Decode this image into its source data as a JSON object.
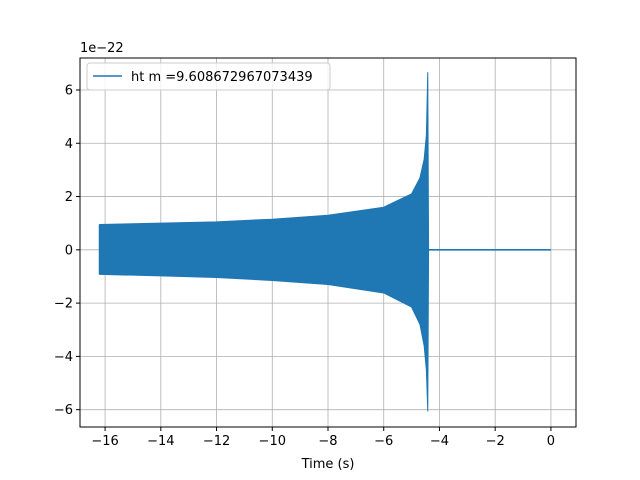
{
  "chart_data": {
    "type": "line",
    "title": "",
    "xlabel": "Time (s)",
    "ylabel": "",
    "offset_label": "1e−22",
    "xlim": [
      -16.9,
      0.9
    ],
    "ylim": [
      -6.65,
      7.2
    ],
    "grid": true,
    "legend_position": "top-left",
    "x_ticks": [
      {
        "value": -16,
        "label": "−16"
      },
      {
        "value": -14,
        "label": "−14"
      },
      {
        "value": -12,
        "label": "−12"
      },
      {
        "value": -10,
        "label": "−10"
      },
      {
        "value": -8,
        "label": "−8"
      },
      {
        "value": -6,
        "label": "−6"
      },
      {
        "value": -4,
        "label": "−4"
      },
      {
        "value": -2,
        "label": "−2"
      },
      {
        "value": 0,
        "label": "0"
      }
    ],
    "y_ticks": [
      {
        "value": -6,
        "label": "−6"
      },
      {
        "value": -4,
        "label": "−4"
      },
      {
        "value": -2,
        "label": "−2"
      },
      {
        "value": 0,
        "label": "0"
      },
      {
        "value": 2,
        "label": "2"
      },
      {
        "value": 4,
        "label": "4"
      },
      {
        "value": 6,
        "label": "6"
      }
    ],
    "series": [
      {
        "name": "ht m =9.608672967073439",
        "color": "#1f77b4",
        "upper_envelope": [
          [
            -16.2,
            0.95
          ],
          [
            -14,
            1.0
          ],
          [
            -12,
            1.05
          ],
          [
            -10,
            1.15
          ],
          [
            -8,
            1.3
          ],
          [
            -6,
            1.6
          ],
          [
            -5,
            2.1
          ],
          [
            -4.7,
            2.7
          ],
          [
            -4.55,
            3.4
          ],
          [
            -4.47,
            4.3
          ],
          [
            -4.42,
            6.65
          ],
          [
            -4.39,
            0.0
          ]
        ],
        "lower_envelope": [
          [
            -16.2,
            -0.92
          ],
          [
            -14,
            -0.98
          ],
          [
            -12,
            -1.04
          ],
          [
            -10,
            -1.15
          ],
          [
            -8,
            -1.3
          ],
          [
            -6,
            -1.62
          ],
          [
            -5,
            -2.15
          ],
          [
            -4.7,
            -2.8
          ],
          [
            -4.55,
            -3.6
          ],
          [
            -4.47,
            -4.5
          ],
          [
            -4.42,
            -6.05
          ],
          [
            -4.39,
            0.0
          ]
        ],
        "flat": [
          [
            -4.39,
            0.0
          ],
          [
            0.0,
            0.0
          ]
        ]
      }
    ]
  }
}
